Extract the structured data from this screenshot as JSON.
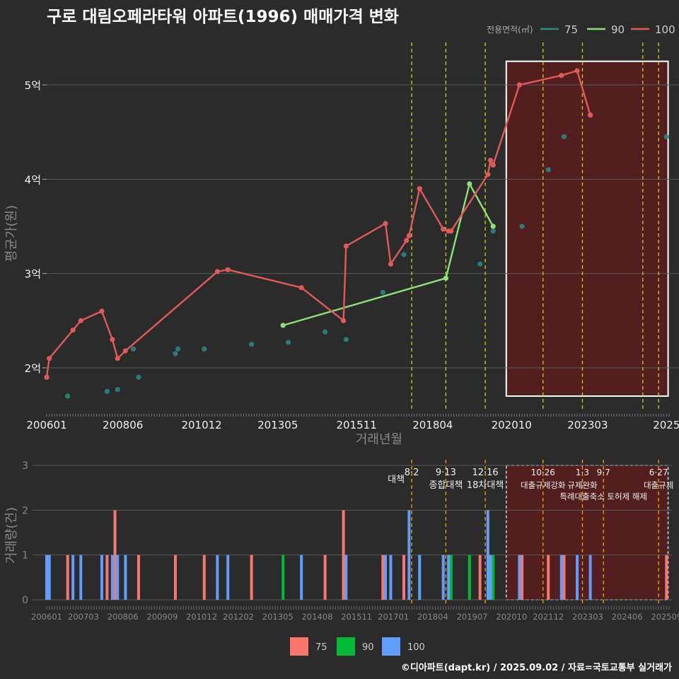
{
  "title": "구로 대림오페라타워 아파트(1996) 매매가격 변화",
  "footer": "©디아파트(dapt.kr) / 2025.09.02 / 자료=국토교통부 실거래가",
  "colors": {
    "background": "#2b2b2b",
    "grid": "#5a5a5a",
    "series75": "#2b8a86",
    "series90": "#90e07a",
    "series100": "#e05a5a",
    "vol75": "#f8766d",
    "vol90": "#00ba38",
    "vol100": "#619cff",
    "policy_line": "#d4cc1a",
    "policy_line_bottom": "#f0a500",
    "highlight_fill": "#5a1c1c"
  },
  "chart_data": [
    {
      "type": "line",
      "title": "구로 대림오페라타워 아파트(1996) 매매가격 변화",
      "xlabel": "거래년월",
      "ylabel": "평균가(원)",
      "legend_title": "전용면적(㎡)",
      "legend_position": "top-right",
      "x_ticks": [
        "200601",
        "200806",
        "201012",
        "201305",
        "201511",
        "201804",
        "202010",
        "202303",
        "2025"
      ],
      "y_ticks": [
        {
          "value": 2.0,
          "label": "2억"
        },
        {
          "value": 3.0,
          "label": "3억"
        },
        {
          "value": 4.0,
          "label": "4억"
        },
        {
          "value": 5.0,
          "label": "5억"
        }
      ],
      "ylim": [
        1.55,
        5.45
      ],
      "xlim": [
        "2006-01",
        "2025-09"
      ],
      "grid": true,
      "highlight_range": [
        "2020-08",
        "2025-08"
      ],
      "policy_lines": [
        "2017-08",
        "2018-09",
        "2019-12",
        "2021-10",
        "2023-01",
        "2024-12",
        "2025-06"
      ],
      "series": [
        {
          "name": "75",
          "style": "points",
          "points": [
            {
              "x": "2006-09",
              "y": 1.7
            },
            {
              "x": "2007-12",
              "y": 1.75
            },
            {
              "x": "2008-04",
              "y": 1.77
            },
            {
              "x": "2008-10",
              "y": 2.2
            },
            {
              "x": "2008-12",
              "y": 1.9
            },
            {
              "x": "2010-02",
              "y": 2.15
            },
            {
              "x": "2010-03",
              "y": 2.2
            },
            {
              "x": "2011-01",
              "y": 2.2
            },
            {
              "x": "2012-07",
              "y": 2.25
            },
            {
              "x": "2013-09",
              "y": 2.27
            },
            {
              "x": "2014-11",
              "y": 2.38
            },
            {
              "x": "2015-07",
              "y": 2.3
            },
            {
              "x": "2016-09",
              "y": 2.8
            },
            {
              "x": "2017-05",
              "y": 3.2
            },
            {
              "x": "2019-10",
              "y": 3.1
            },
            {
              "x": "2020-03",
              "y": 3.45
            },
            {
              "x": "2021-02",
              "y": 3.5
            },
            {
              "x": "2021-12",
              "y": 4.1
            },
            {
              "x": "2022-06",
              "y": 4.45
            },
            {
              "x": "2025-09",
              "y": 4.45
            }
          ]
        },
        {
          "name": "90",
          "style": "line",
          "points": [
            {
              "x": "2013-07",
              "y": 2.45
            },
            {
              "x": "2018-09",
              "y": 2.95
            },
            {
              "x": "2019-06",
              "y": 3.95
            },
            {
              "x": "2020-03",
              "y": 3.5
            }
          ]
        },
        {
          "name": "100",
          "style": "line",
          "points": [
            {
              "x": "2006-01",
              "y": 1.9
            },
            {
              "x": "2006-02",
              "y": 2.1
            },
            {
              "x": "2006-11",
              "y": 2.4
            },
            {
              "x": "2007-02",
              "y": 2.5
            },
            {
              "x": "2007-10",
              "y": 2.6
            },
            {
              "x": "2008-02",
              "y": 2.3
            },
            {
              "x": "2008-04",
              "y": 2.1
            },
            {
              "x": "2008-07",
              "y": 2.18
            },
            {
              "x": "2011-06",
              "y": 3.02
            },
            {
              "x": "2011-10",
              "y": 3.04
            },
            {
              "x": "2014-02",
              "y": 2.85
            },
            {
              "x": "2015-06",
              "y": 2.5
            },
            {
              "x": "2015-07",
              "y": 3.29
            },
            {
              "x": "2016-10",
              "y": 3.53
            },
            {
              "x": "2016-12",
              "y": 3.1
            },
            {
              "x": "2017-06",
              "y": 3.35
            },
            {
              "x": "2017-07",
              "y": 3.4
            },
            {
              "x": "2017-11",
              "y": 3.9
            },
            {
              "x": "2018-08",
              "y": 3.47
            },
            {
              "x": "2018-10",
              "y": 3.45
            },
            {
              "x": "2018-11",
              "y": 3.45
            },
            {
              "x": "2020-01",
              "y": 4.05
            },
            {
              "x": "2020-02",
              "y": 4.2
            },
            {
              "x": "2020-03",
              "y": 4.15
            },
            {
              "x": "2021-01",
              "y": 5.0
            },
            {
              "x": "2022-05",
              "y": 5.1
            },
            {
              "x": "2022-11",
              "y": 5.15
            },
            {
              "x": "2023-04",
              "y": 4.68
            }
          ]
        }
      ]
    },
    {
      "type": "bar",
      "ylabel": "거래량(건)",
      "legend_position": "bottom",
      "ylim": [
        0,
        3
      ],
      "y_ticks": [
        "0",
        "1",
        "2",
        "3"
      ],
      "x_ticks": [
        "200601",
        "200703",
        "200806",
        "200909",
        "201012",
        "201202",
        "201305",
        "201408",
        "201511",
        "201701",
        "201804",
        "201907",
        "202010",
        "202112",
        "202303",
        "202406",
        "202509"
      ],
      "highlight_range": [
        "2020-08",
        "2025-08"
      ],
      "policy_annotations": [
        {
          "x": "2017-08",
          "date": "8·2",
          "label": "대책"
        },
        {
          "x": "2018-09",
          "date": "9·13",
          "label": "종합대책"
        },
        {
          "x": "2019-12",
          "date": "12·16",
          "label": "18차대책"
        },
        {
          "x": "2021-10",
          "date": "10·26",
          "label": "대출규제강화"
        },
        {
          "x": "2023-01",
          "date": "1·3",
          "label": "규제완화"
        },
        {
          "x": "2023-09",
          "date": "9·7",
          "label": "특례대출축소 토허제 해제"
        },
        {
          "x": "2025-06",
          "date": "6·27",
          "label": "대출규제"
        }
      ],
      "series": [
        {
          "name": "75",
          "bars": [
            {
              "x": "2006-09",
              "y": 1
            },
            {
              "x": "2007-12",
              "y": 1
            },
            {
              "x": "2008-03",
              "y": 2
            },
            {
              "x": "2008-12",
              "y": 1
            },
            {
              "x": "2010-02",
              "y": 1
            },
            {
              "x": "2011-01",
              "y": 1
            },
            {
              "x": "2012-07",
              "y": 1
            },
            {
              "x": "2014-11",
              "y": 1
            },
            {
              "x": "2015-06",
              "y": 2
            },
            {
              "x": "2016-09",
              "y": 1
            },
            {
              "x": "2017-05",
              "y": 1
            },
            {
              "x": "2019-10",
              "y": 1
            },
            {
              "x": "2021-02",
              "y": 1
            },
            {
              "x": "2021-12",
              "y": 1
            },
            {
              "x": "2022-06",
              "y": 1
            },
            {
              "x": "2025-09",
              "y": 1
            }
          ]
        },
        {
          "name": "90",
          "bars": [
            {
              "x": "2013-07",
              "y": 1
            },
            {
              "x": "2018-11",
              "y": 1
            },
            {
              "x": "2019-06",
              "y": 1
            },
            {
              "x": "2020-03",
              "y": 1
            }
          ]
        },
        {
          "name": "100",
          "bars": [
            {
              "x": "2006-01",
              "y": 1
            },
            {
              "x": "2006-02",
              "y": 1
            },
            {
              "x": "2006-11",
              "y": 1
            },
            {
              "x": "2007-02",
              "y": 1
            },
            {
              "x": "2007-10",
              "y": 1
            },
            {
              "x": "2008-02",
              "y": 1
            },
            {
              "x": "2008-04",
              "y": 1
            },
            {
              "x": "2008-07",
              "y": 1
            },
            {
              "x": "2011-06",
              "y": 1
            },
            {
              "x": "2011-10",
              "y": 1
            },
            {
              "x": "2014-02",
              "y": 1
            },
            {
              "x": "2015-07",
              "y": 1
            },
            {
              "x": "2016-10",
              "y": 1
            },
            {
              "x": "2016-12",
              "y": 1
            },
            {
              "x": "2017-07",
              "y": 2
            },
            {
              "x": "2017-11",
              "y": 1
            },
            {
              "x": "2018-08",
              "y": 1
            },
            {
              "x": "2018-10",
              "y": 1
            },
            {
              "x": "2020-01",
              "y": 2
            },
            {
              "x": "2020-02",
              "y": 1
            },
            {
              "x": "2021-01",
              "y": 1
            },
            {
              "x": "2022-05",
              "y": 1
            },
            {
              "x": "2022-11",
              "y": 1
            },
            {
              "x": "2023-04",
              "y": 1
            }
          ]
        }
      ]
    }
  ]
}
